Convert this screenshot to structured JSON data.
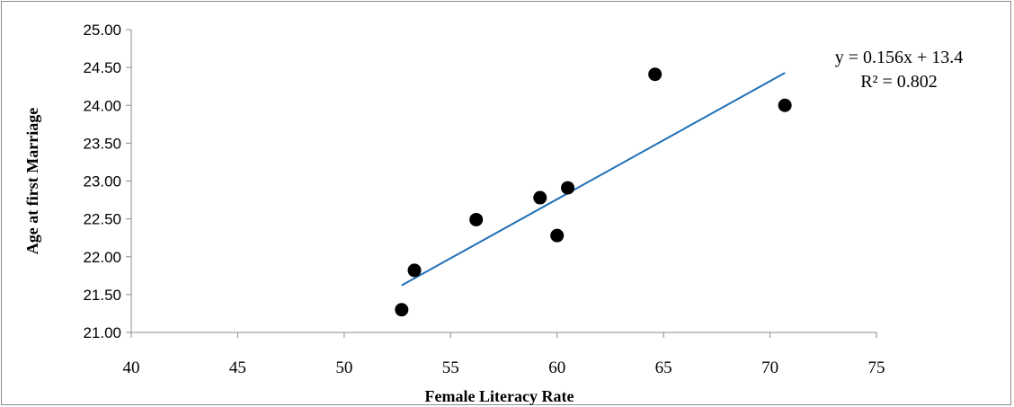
{
  "chart_data": {
    "type": "scatter",
    "title": "",
    "xlabel": "Female Literacy Rate",
    "ylabel": "Age at first Marriage",
    "xlim": [
      40,
      75
    ],
    "ylim": [
      21.0,
      25.0
    ],
    "x_ticks": [
      "40",
      "45",
      "50",
      "55",
      "60",
      "65",
      "70",
      "75"
    ],
    "y_ticks": [
      "21.00",
      "21.50",
      "22.00",
      "22.50",
      "23.00",
      "23.50",
      "24.00",
      "24.50",
      "25.00"
    ],
    "grid": false,
    "legend": "none",
    "points": [
      {
        "x": 52.7,
        "y": 21.3
      },
      {
        "x": 53.3,
        "y": 21.82
      },
      {
        "x": 56.2,
        "y": 22.49
      },
      {
        "x": 59.2,
        "y": 22.78
      },
      {
        "x": 60.0,
        "y": 22.28
      },
      {
        "x": 60.5,
        "y": 22.91
      },
      {
        "x": 64.6,
        "y": 24.41
      },
      {
        "x": 70.7,
        "y": 24.0
      }
    ],
    "trendline": {
      "type": "linear",
      "slope": 0.156,
      "intercept": 13.4,
      "x_range": [
        52.7,
        70.7
      ],
      "color": "#1f6fb5",
      "equation_label": "y = 0.156x + 13.4",
      "r2_label": "R² = 0.802"
    },
    "marker_color": "#000000"
  }
}
